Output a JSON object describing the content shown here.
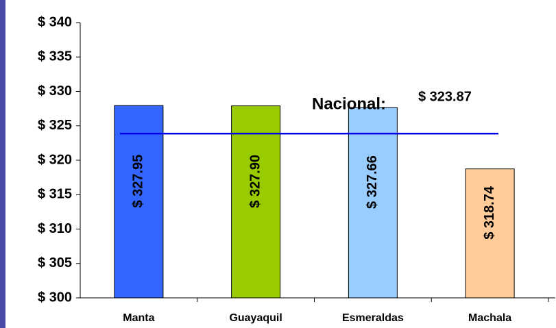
{
  "chart_data": {
    "type": "bar",
    "categories": [
      "Manta",
      "Guayaquil",
      "Esmeraldas",
      "Machala"
    ],
    "values": [
      327.95,
      327.9,
      327.66,
      318.74
    ],
    "value_labels": [
      "$ 327.95",
      "$ 327.90",
      "$ 327.66",
      "$ 318.74"
    ],
    "colors": [
      "#3366ff",
      "#99cc00",
      "#99ccff",
      "#ffcc99"
    ],
    "ylim": [
      300,
      340
    ],
    "yticks": [
      {
        "value": 300,
        "label": "$ 300"
      },
      {
        "value": 305,
        "label": "$ 305"
      },
      {
        "value": 310,
        "label": "$ 310"
      },
      {
        "value": 315,
        "label": "$ 315"
      },
      {
        "value": 320,
        "label": "$ 320"
      },
      {
        "value": 325,
        "label": "$ 325"
      },
      {
        "value": 330,
        "label": "$ 330"
      },
      {
        "value": 335,
        "label": "$ 335"
      },
      {
        "value": 340,
        "label": "$ 340"
      }
    ],
    "reference_line": {
      "label": "Nacional:",
      "value": 323.87,
      "value_label": "$ 323.87",
      "color": "#0000ee"
    },
    "grid": false
  }
}
